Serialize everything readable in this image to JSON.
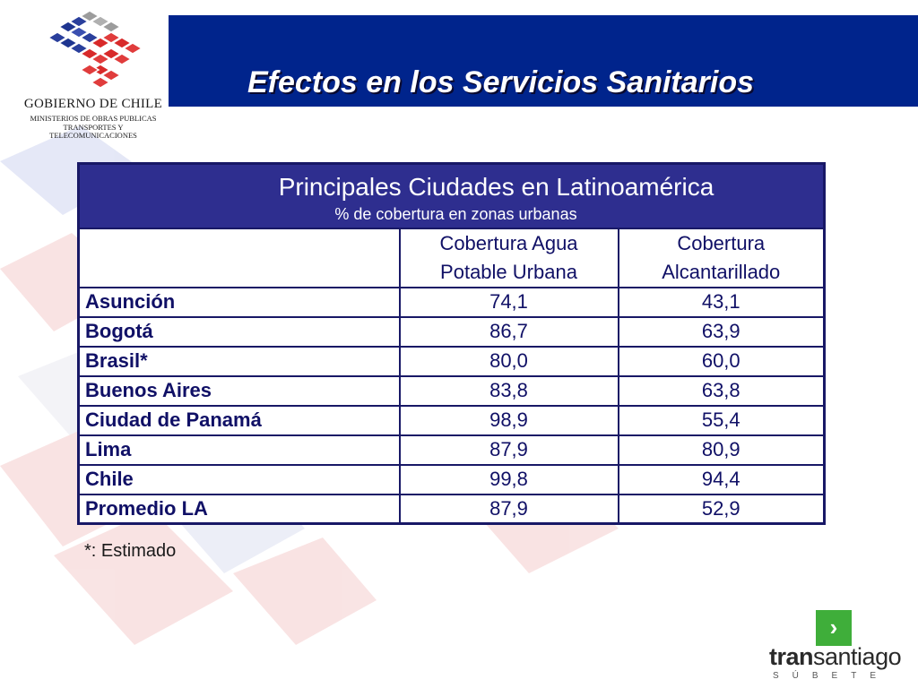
{
  "header": {
    "title": "Efectos en los Servicios Sanitarios"
  },
  "logo": {
    "title": "GOBIERNO DE CHILE",
    "subtitle_lines": [
      "MINISTERIOS DE OBRAS PUBLICAS",
      "TRANSPORTES Y",
      "TELECOMUNICACIONES"
    ]
  },
  "table": {
    "title": "Principales Ciudades en Latinoamérica",
    "subtitle": "% de cobertura en zonas urbanas",
    "columns": [
      {
        "line1": "Cobertura Agua",
        "line2": "Potable Urbana"
      },
      {
        "line1": "Cobertura",
        "line2": "Alcantarillado"
      }
    ],
    "rows": [
      {
        "city": "Asunción",
        "agua": "74,1",
        "alcantarillado": "43,1"
      },
      {
        "city": "Bogotá",
        "agua": "86,7",
        "alcantarillado": "63,9"
      },
      {
        "city": "Brasil*",
        "agua": "80,0",
        "alcantarillado": "60,0"
      },
      {
        "city": "Buenos Aires",
        "agua": "83,8",
        "alcantarillado": "63,8"
      },
      {
        "city": "Ciudad de Panamá",
        "agua": "98,9",
        "alcantarillado": "55,4"
      },
      {
        "city": "Lima",
        "agua": "87,9",
        "alcantarillado": "80,9"
      },
      {
        "city": "Chile",
        "agua": "99,8",
        "alcantarillado": "94,4"
      },
      {
        "city": "Promedio LA",
        "agua": "87,9",
        "alcantarillado": "52,9"
      }
    ],
    "footnote": "*: Estimado"
  },
  "branding": {
    "next_icon": "chevron-right-icon",
    "next_glyph": "›",
    "name_bold": "tran",
    "name_rest": "santiago",
    "tagline": "SÚBETE"
  },
  "colors": {
    "header_bg": "#00248c",
    "table_caption_bg": "#2e2e8f",
    "table_text": "#101066",
    "next_button": "#3fae3a"
  }
}
